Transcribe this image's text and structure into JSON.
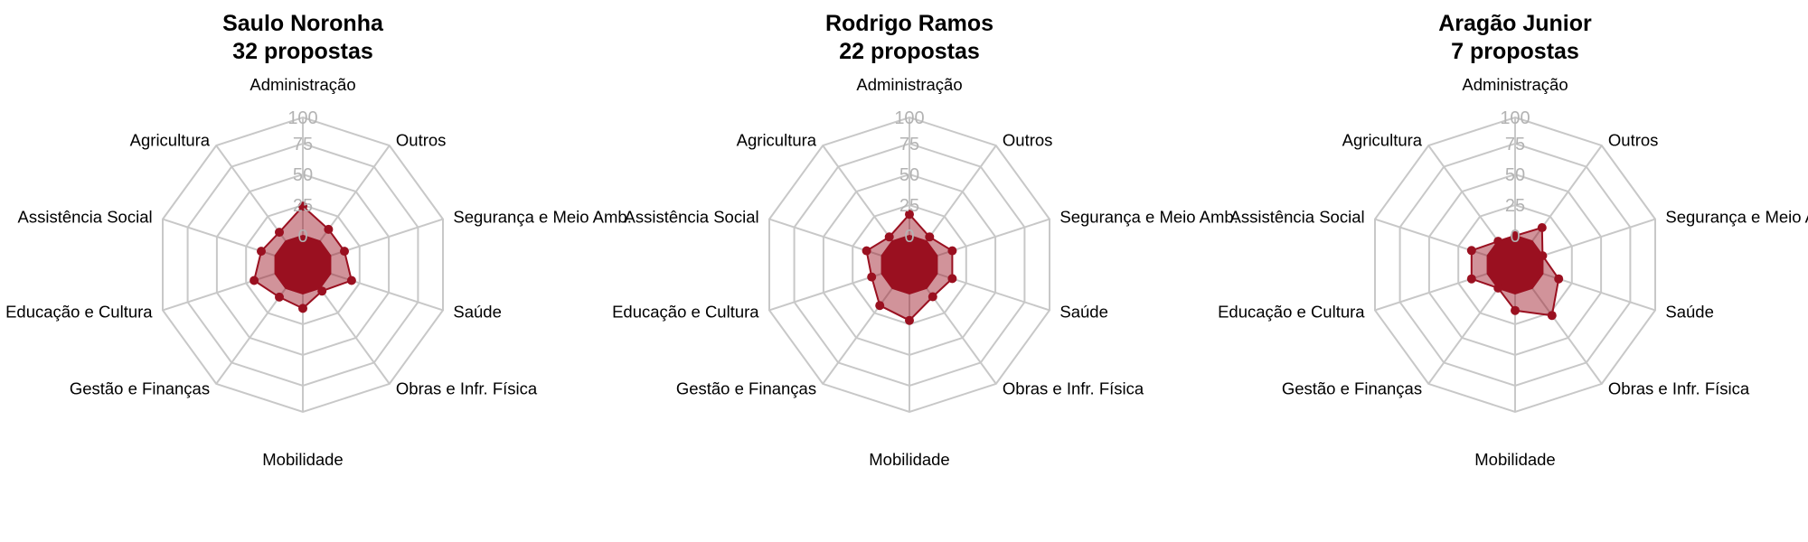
{
  "chart_data": [
    {
      "type": "radar",
      "title": "Saulo Noronha",
      "subtitle": "32 propostas",
      "axes": [
        "Administração",
        "Outros",
        "Segurança e Meio Amb.",
        "Saúde",
        "Obras e Infr. Física",
        "Mobilidade",
        "Gestão e Finanças",
        "Educação e Cultura",
        "Assistência Social",
        "Agricultura"
      ],
      "values": [
        25,
        12.5,
        12.5,
        18.8,
        3.1,
        12.5,
        9.4,
        18.8,
        12.5,
        9.4
      ],
      "rlim": [
        0,
        100
      ],
      "rticks": [
        "0",
        "25",
        "50",
        "75",
        "100"
      ],
      "color": "#9a1020"
    },
    {
      "type": "radar",
      "title": "Rodrigo Ramos",
      "subtitle": "22 propostas",
      "axes": [
        "Administração",
        "Outros",
        "Segurança e Meio Amb.",
        "Saúde",
        "Obras e Infr. Física",
        "Mobilidade",
        "Gestão e Finanças",
        "Educação e Cultura",
        "Assistência Social",
        "Agricultura"
      ],
      "values": [
        18.2,
        4.5,
        13.6,
        13.6,
        9.1,
        22.7,
        18.2,
        9.1,
        13.6,
        4.5
      ],
      "rlim": [
        0,
        100
      ],
      "rticks": [
        "0",
        "25",
        "50",
        "75",
        "100"
      ],
      "color": "#9a1020"
    },
    {
      "type": "radar",
      "title": "Aragão Junior",
      "subtitle": "7 propostas",
      "axes": [
        "Administração",
        "Outros",
        "Segurança e Meio Amb.",
        "Saúde",
        "Obras e Infr. Física",
        "Mobilidade",
        "Gestão e Finanças",
        "Educação e Cultura",
        "Assistência Social",
        "Agricultura"
      ],
      "values": [
        0,
        14.3,
        0,
        14.3,
        28.6,
        14.3,
        0,
        14.3,
        14.3,
        0
      ],
      "rlim": [
        0,
        100
      ],
      "rticks": [
        "0",
        "25",
        "50",
        "75",
        "100"
      ],
      "color": "#9a1020"
    }
  ]
}
